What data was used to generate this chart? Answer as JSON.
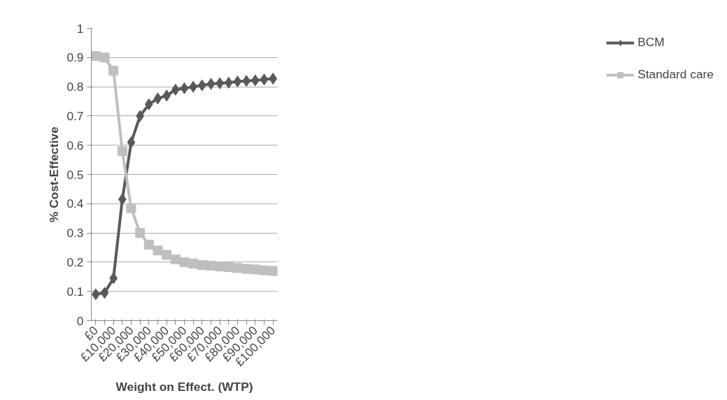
{
  "chart_data": {
    "type": "line",
    "xlabel": "Weight on Effect. (WTP)",
    "ylabel": "% Cost-Effective",
    "categories": [
      "£0",
      null,
      "£10,000",
      null,
      "£20,000",
      null,
      "£30,000",
      null,
      "£40,000",
      null,
      "£50,000",
      null,
      "£60,000",
      null,
      "£70,000",
      null,
      "£80,000",
      null,
      "£90,000",
      null,
      "£100,000"
    ],
    "series": [
      {
        "name": "BCM",
        "color": "#595959",
        "marker": "diamond",
        "values": [
          0.09,
          0.095,
          0.145,
          0.415,
          0.61,
          0.7,
          0.74,
          0.76,
          0.77,
          0.79,
          0.795,
          0.8,
          0.805,
          0.81,
          0.812,
          0.814,
          0.818,
          0.82,
          0.822,
          0.825,
          0.828
        ]
      },
      {
        "name": "Standard care",
        "color": "#bfbfbf",
        "marker": "square",
        "values": [
          0.905,
          0.9,
          0.855,
          0.58,
          0.385,
          0.3,
          0.26,
          0.24,
          0.225,
          0.21,
          0.2,
          0.195,
          0.19,
          0.188,
          0.185,
          0.183,
          0.18,
          0.177,
          0.175,
          0.172,
          0.17
        ]
      }
    ],
    "ylim": [
      0,
      1
    ],
    "yticks": [
      0,
      0.1,
      0.2,
      0.3,
      0.4,
      0.5,
      0.6,
      0.7,
      0.8,
      0.9,
      1
    ],
    "grid": "y",
    "legend": "right",
    "line_style": "solid"
  }
}
